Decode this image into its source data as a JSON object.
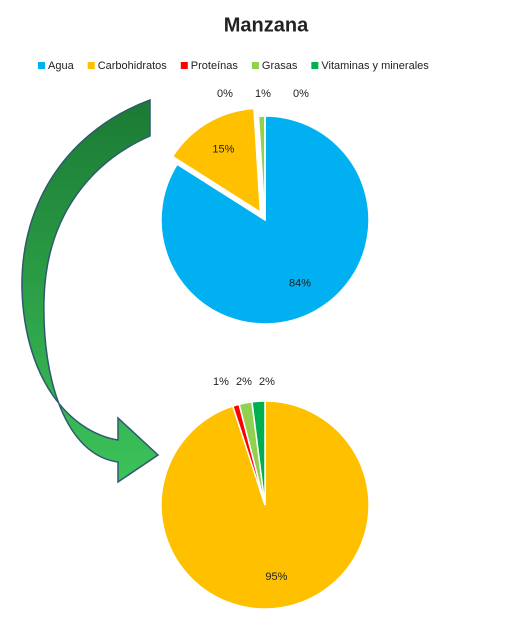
{
  "chart_data": {
    "type": "pie",
    "title": "Manzana",
    "categories": [
      "Agua",
      "Carbohidratos",
      "Proteínas",
      "Grasas",
      "Vitaminas y minerales"
    ],
    "colors": [
      "#00b0f0",
      "#ffc000",
      "#ff0000",
      "#92d050",
      "#00b050"
    ],
    "legend": "top",
    "pies": [
      {
        "values": [
          84,
          15,
          0,
          1,
          0
        ],
        "value_labels": [
          "84%",
          "15%",
          "0%",
          "1%",
          "0%"
        ],
        "exploded": 1
      },
      {
        "values": [
          0,
          95,
          1,
          2,
          2
        ],
        "value_labels": [
          null,
          "95%",
          "1%",
          "2%",
          "2%"
        ]
      }
    ]
  }
}
